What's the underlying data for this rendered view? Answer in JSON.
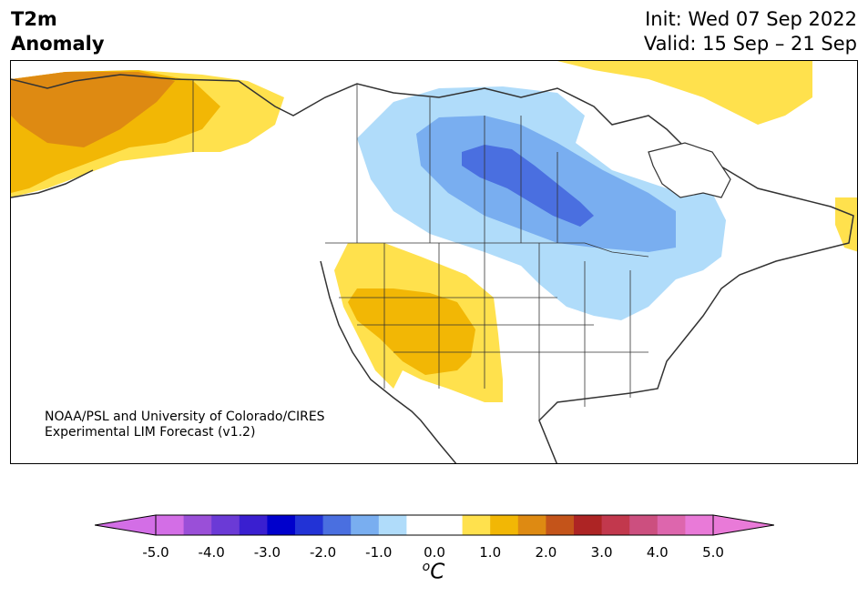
{
  "header": {
    "variable": "T2m",
    "subtitle": "Anomaly",
    "init": "Init: Wed 07 Sep 2022",
    "valid": "Valid: 15 Sep – 21 Sep"
  },
  "credit": {
    "line1": "NOAA/PSL and University of Colorado/CIRES",
    "line2": "Experimental LIM Forecast (v1.2)"
  },
  "colorbar": {
    "units": "C",
    "units_prefix": "o",
    "colors": [
      "#d36ee6",
      "#9a4fd8",
      "#6b3ad6",
      "#3a1fd0",
      "#0000cc",
      "#2233d6",
      "#4a6fe0",
      "#79aef0",
      "#b0dcfa",
      "#ffffff",
      "#ffffff",
      "#ffe14d",
      "#f2b705",
      "#de8a12",
      "#c4541a",
      "#ad2424",
      "#c2384d",
      "#cc4f7f",
      "#dd66ad",
      "#e97ad8"
    ],
    "under_color": "#d36ee6",
    "over_color": "#e97ad8",
    "tick_labels": [
      "-5.0",
      "-4.0",
      "-3.0",
      "-2.0",
      "-1.0",
      "0.0",
      "1.0",
      "2.0",
      "3.0",
      "4.0",
      "5.0"
    ]
  },
  "map": {
    "region": "North America",
    "anomaly_colors": {
      "warm1": "#ffe14d",
      "warm2": "#f2b705",
      "warm3": "#de8a12",
      "cool1": "#b0dcfa",
      "cool2": "#79aef0",
      "cool3": "#4a6fe0"
    },
    "coastline_color": "#333333"
  }
}
